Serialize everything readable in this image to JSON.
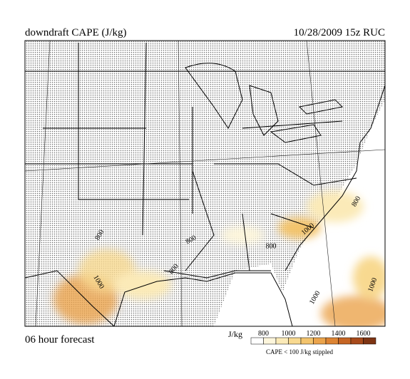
{
  "header": {
    "title": "downdraft CAPE (J/kg)",
    "valid": "10/28/2009  15z  RUC"
  },
  "footer": {
    "forecast": "06 hour forecast"
  },
  "legend": {
    "unit": "J/kg",
    "ticks": [
      800,
      1000,
      1200,
      1400,
      1600
    ],
    "colors": [
      "#ffffff",
      "#fdf6dc",
      "#fbeab8",
      "#f8d990",
      "#f3c46d",
      "#eba44c",
      "#dd8433",
      "#c66524",
      "#a84a1b",
      "#7e3413"
    ],
    "note": "CAPE < 100 J/kg stippled"
  },
  "contour_labels": [
    "800",
    "1000",
    "800",
    "800",
    "800",
    "1000",
    "1000",
    "800",
    "1000"
  ]
}
